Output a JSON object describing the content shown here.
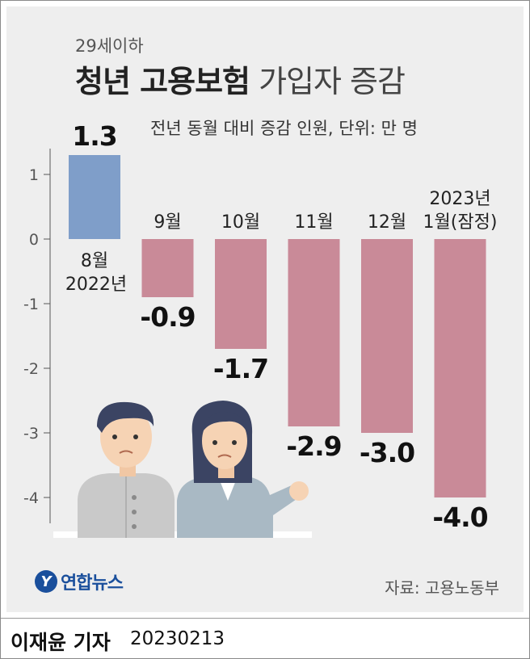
{
  "subtitle_top": "29세이하",
  "title_bold": "청년 고용보험",
  "title_light": " 가입자 증감",
  "unit_note": "전년 동월 대비 증감 인원, 단위: 만 명",
  "source": "자료: 고용노동부",
  "logo_text": "연합뉴스",
  "reporter": "이재윤 기자",
  "date": "20230213",
  "colors": {
    "positive": "#7f9ec9",
    "negative": "#c98a98",
    "panel": "#eeeeee"
  },
  "chart_data": {
    "type": "bar",
    "categories": [
      [
        "8월",
        "2022년"
      ],
      [
        "9월"
      ],
      [
        "10월"
      ],
      [
        "11월"
      ],
      [
        "12월"
      ],
      [
        "2023년",
        "1월(잠정)"
      ]
    ],
    "values": [
      1.3,
      -0.9,
      -1.7,
      -2.9,
      -3.0,
      -4.0
    ],
    "value_labels": [
      "1.3",
      "-0.9",
      "-1.7",
      "-2.9",
      "-3.0",
      "-4.0"
    ],
    "yticks": [
      "1",
      "0",
      "-1",
      "-2",
      "-3",
      "-4"
    ],
    "ytick_values": [
      1,
      0,
      -1,
      -2,
      -3,
      -4
    ],
    "ylim": [
      -4.4,
      1.4
    ],
    "grid": false,
    "legend": "none",
    "title": "청년 고용보험 가입자 증감",
    "subtitle": "29세이하",
    "ylabel": "",
    "xlabel": ""
  },
  "illustration": {
    "description_icon": "two-young-people-icon"
  }
}
